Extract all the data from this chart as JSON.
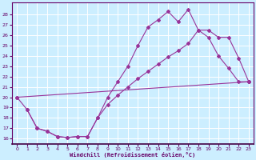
{
  "xlabel": "Windchill (Refroidissement éolien,°C)",
  "background_color": "#cceeff",
  "grid_color": "#ffffff",
  "line_color": "#993399",
  "tick_color": "#660066",
  "xlim": [
    -0.5,
    23.5
  ],
  "ylim": [
    15.5,
    29.2
  ],
  "xticks": [
    0,
    1,
    2,
    3,
    4,
    5,
    6,
    7,
    8,
    9,
    10,
    11,
    12,
    13,
    14,
    15,
    16,
    17,
    18,
    19,
    20,
    21,
    22,
    23
  ],
  "yticks": [
    16,
    17,
    18,
    19,
    20,
    21,
    22,
    23,
    24,
    25,
    26,
    27,
    28
  ],
  "curve1": {
    "x": [
      0,
      1,
      2,
      3,
      4,
      5,
      6,
      7,
      8,
      9,
      10,
      11,
      12,
      13,
      14,
      15,
      16,
      17,
      18,
      19,
      20,
      21,
      22,
      23
    ],
    "y": [
      20.0,
      18.8,
      17.0,
      16.7,
      16.2,
      16.1,
      16.2,
      16.2,
      18.0,
      20.0,
      21.5,
      23.0,
      25.0,
      26.8,
      27.5,
      28.3,
      27.3,
      28.5,
      26.5,
      25.8,
      24.0,
      22.8,
      21.5,
      21.5
    ]
  },
  "curve2": {
    "x": [
      0,
      23
    ],
    "y": [
      20.0,
      21.5
    ]
  },
  "curve3": {
    "x": [
      1,
      2,
      3,
      4,
      5,
      6,
      7,
      8,
      9,
      10,
      11,
      12,
      13,
      14,
      15,
      16,
      17,
      18,
      19,
      20,
      21,
      22,
      23
    ],
    "y": [
      18.8,
      17.0,
      16.7,
      16.2,
      16.1,
      16.2,
      16.2,
      18.0,
      19.3,
      20.2,
      21.0,
      21.8,
      22.5,
      23.2,
      23.9,
      24.5,
      25.2,
      26.5,
      26.5,
      25.8,
      25.8,
      23.8,
      21.5
    ]
  }
}
